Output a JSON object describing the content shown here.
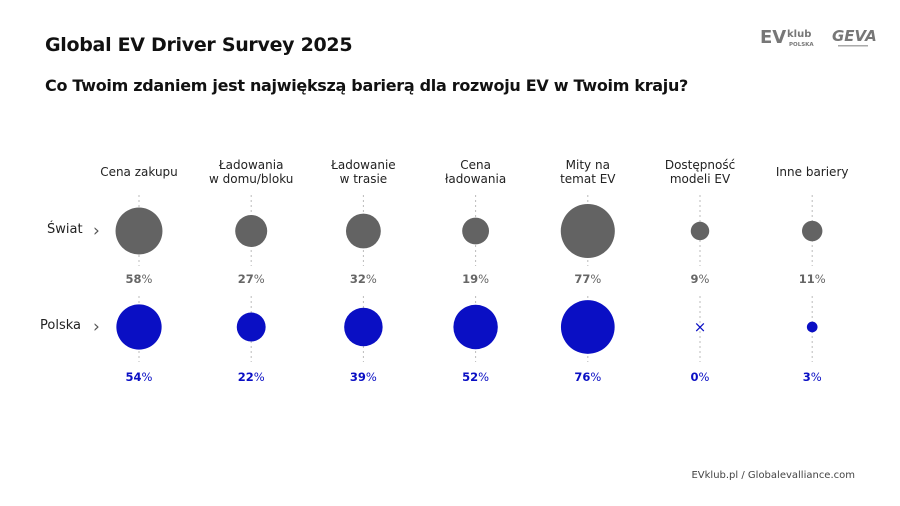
{
  "header": {
    "title": "Global EV Driver Survey 2025",
    "subtitle": "Co Twoim zdaniem jest największą barierą dla rozwoju EV w Twoim kraju?"
  },
  "logos": {
    "evklub": "EVklub POLSKA",
    "geva": "GEVA"
  },
  "footer": {
    "text": "EVklub.pl   /   Globalevalliance.com"
  },
  "chart_data": {
    "type": "bubble",
    "categories": [
      "Cena zakupu",
      "Ładowania\nw domu/bloku",
      "Ładowanie\nw trasie",
      "Cena\nładowania",
      "Mity na\ntemat EV",
      "Dostępność\nmodeli EV",
      "Inne bariery"
    ],
    "series": [
      {
        "name": "Świat",
        "values": [
          58,
          27,
          32,
          19,
          77,
          9,
          11
        ],
        "color": "#636363"
      },
      {
        "name": "Polska",
        "values": [
          54,
          22,
          39,
          52,
          76,
          0,
          3
        ],
        "color": "#0a0fc4"
      }
    ],
    "unit": "%",
    "zero_marker": "×"
  }
}
